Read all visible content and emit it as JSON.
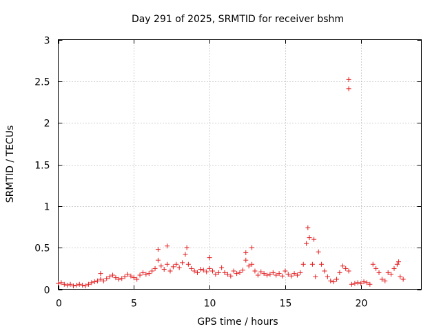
{
  "chart_data": {
    "type": "scatter",
    "title": "Day 291 of 2025, SRMTID for receiver bshm",
    "xlabel": "GPS time / hours",
    "ylabel": "SRMTID / TECUs",
    "xlim": [
      0,
      24
    ],
    "ylim": [
      0,
      3
    ],
    "x_ticks": [
      0,
      5,
      10,
      15,
      20
    ],
    "x_tick_labels": [
      "0",
      "5",
      "10",
      "15",
      "20"
    ],
    "y_ticks": [
      0,
      0.5,
      1,
      1.5,
      2,
      2.5,
      3
    ],
    "y_tick_labels": [
      "0",
      "0.5",
      "1",
      "1.5",
      "2",
      "2.5",
      "3"
    ],
    "grid": true,
    "marker": "+",
    "series": [
      {
        "name": "SRMTID",
        "color": "#e41a1c",
        "x": [
          0.0,
          0.2,
          0.4,
          0.6,
          0.8,
          1.0,
          1.2,
          1.4,
          1.6,
          1.8,
          2.0,
          2.2,
          2.4,
          2.6,
          2.8,
          3.0,
          3.2,
          3.4,
          3.6,
          3.8,
          4.0,
          4.2,
          4.4,
          4.6,
          4.8,
          5.0,
          5.2,
          5.4,
          5.6,
          5.8,
          6.0,
          6.2,
          6.4,
          6.6,
          6.8,
          7.0,
          7.2,
          7.4,
          7.6,
          7.8,
          8.0,
          8.2,
          8.4,
          8.6,
          8.8,
          9.0,
          9.2,
          9.4,
          9.6,
          9.8,
          10.0,
          10.2,
          10.4,
          10.6,
          10.8,
          11.0,
          11.2,
          11.4,
          11.6,
          11.8,
          12.0,
          12.2,
          12.4,
          12.6,
          12.8,
          13.0,
          13.2,
          13.4,
          13.6,
          13.8,
          14.0,
          14.2,
          14.4,
          14.6,
          14.8,
          15.0,
          15.2,
          15.4,
          15.6,
          15.8,
          16.0,
          16.2,
          16.4,
          16.6,
          16.8,
          17.0,
          17.2,
          17.4,
          17.6,
          17.8,
          18.0,
          18.2,
          18.4,
          18.6,
          18.8,
          19.0,
          19.2,
          19.4,
          19.6,
          19.8,
          20.0,
          20.2,
          20.4,
          20.6,
          20.8,
          21.0,
          21.2,
          21.4,
          21.6,
          21.8,
          22.0,
          22.2,
          22.4,
          22.6,
          22.8,
          6.6,
          7.2,
          8.5,
          10.0,
          12.4,
          12.8,
          16.5,
          16.9,
          19.2,
          19.2,
          2.8,
          22.5
        ],
        "y": [
          0.07,
          0.08,
          0.06,
          0.05,
          0.06,
          0.04,
          0.05,
          0.06,
          0.05,
          0.04,
          0.06,
          0.08,
          0.09,
          0.1,
          0.12,
          0.1,
          0.13,
          0.15,
          0.17,
          0.14,
          0.12,
          0.13,
          0.15,
          0.18,
          0.16,
          0.14,
          0.12,
          0.17,
          0.2,
          0.18,
          0.19,
          0.22,
          0.25,
          0.35,
          0.28,
          0.24,
          0.3,
          0.22,
          0.27,
          0.3,
          0.26,
          0.32,
          0.42,
          0.3,
          0.25,
          0.22,
          0.2,
          0.24,
          0.23,
          0.21,
          0.25,
          0.22,
          0.18,
          0.2,
          0.26,
          0.2,
          0.18,
          0.16,
          0.22,
          0.19,
          0.2,
          0.23,
          0.35,
          0.28,
          0.3,
          0.22,
          0.17,
          0.21,
          0.19,
          0.17,
          0.18,
          0.2,
          0.17,
          0.19,
          0.16,
          0.22,
          0.18,
          0.16,
          0.19,
          0.17,
          0.2,
          0.3,
          0.55,
          0.62,
          0.3,
          0.15,
          0.45,
          0.3,
          0.22,
          0.15,
          0.1,
          0.09,
          0.12,
          0.2,
          0.28,
          0.25,
          0.22,
          0.06,
          0.07,
          0.08,
          0.07,
          0.09,
          0.08,
          0.06,
          0.3,
          0.25,
          0.2,
          0.12,
          0.1,
          0.2,
          0.18,
          0.25,
          0.3,
          0.15,
          0.12,
          0.48,
          0.52,
          0.5,
          0.38,
          0.44,
          0.5,
          0.74,
          0.6,
          2.52,
          2.41,
          0.19,
          0.33
        ]
      }
    ]
  }
}
